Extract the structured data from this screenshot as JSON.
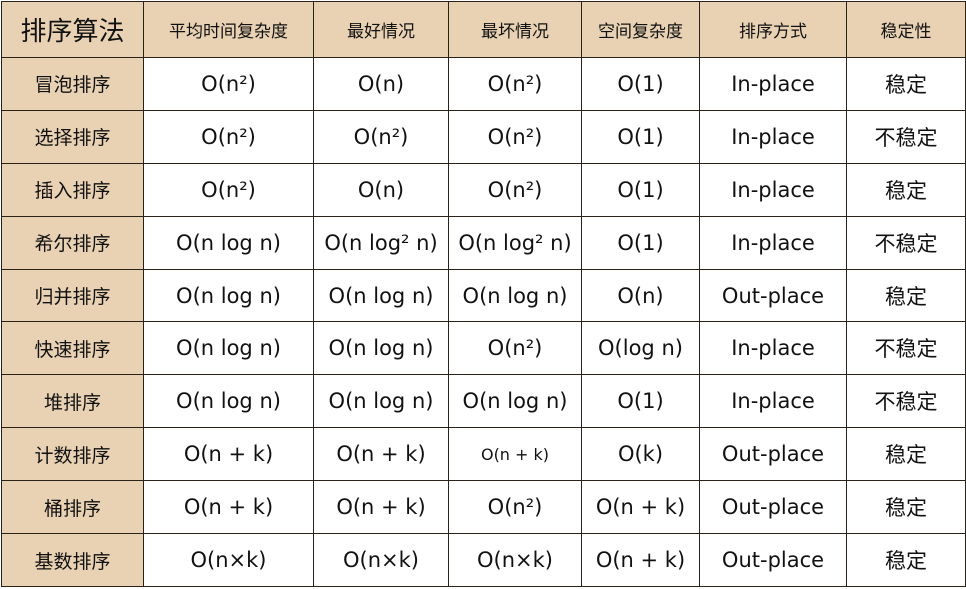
{
  "headers": [
    "排序算法",
    "平均时间复杂度",
    "最好情况",
    "最坏情况",
    "空间复杂度",
    "排序方式",
    "稳定性"
  ],
  "rows": [
    [
      "冒泡排序",
      "O(n²)",
      "O(n)",
      "O(n²)",
      "O(1)",
      "In-place",
      "稳定"
    ],
    [
      "选择排序",
      "O(n²)",
      "O(n²)",
      "O(n²)",
      "O(1)",
      "In-place",
      "不稳定"
    ],
    [
      "插入排序",
      "O(n²)",
      "O(n)",
      "O(n²)",
      "O(1)",
      "In-place",
      "稳定"
    ],
    [
      "希尔排序",
      "O(n log n)",
      "O(n log² n)",
      "O(n log² n)",
      "O(1)",
      "In-place",
      "不稳定"
    ],
    [
      "归并排序",
      "O(n log n)",
      "O(n log n)",
      "O(n log n)",
      "O(n)",
      "Out-place",
      "稳定"
    ],
    [
      "快速排序",
      "O(n log n)",
      "O(n log n)",
      "O(n²)",
      "O(log n)",
      "In-place",
      "不稳定"
    ],
    [
      "堆排序",
      "O(n log n)",
      "O(n log n)",
      "O(n log n)",
      "O(1)",
      "In-place",
      "不稳定"
    ],
    [
      "计数排序",
      "O(n + k)",
      "O(n + k)",
      "O(n + k)",
      "O(k)",
      "Out-place",
      "稳定"
    ],
    [
      "桶排序",
      "O(n + k)",
      "O(n + k)",
      "O(n²)",
      "O(n + k)",
      "Out-place",
      "稳定"
    ],
    [
      "基数排序",
      "O(n×k)",
      "O(n×k)",
      "O(n×k)",
      "O(n + k)",
      "Out-place",
      "稳定"
    ]
  ],
  "colors": {
    "header_bg": "#e9d2b3",
    "border": "#2a2118",
    "cell_bg": "#ffffff"
  }
}
